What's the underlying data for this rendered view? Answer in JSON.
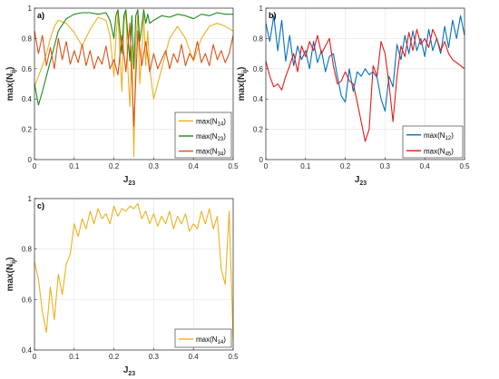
{
  "chart_data": [
    {
      "type": "line",
      "panel_label": "a)",
      "xlabel": "J",
      "xlabel_sub": "23",
      "ylabel": "max(N",
      "ylabel_sub": "ij",
      "ylabel_close": ")",
      "xlim": [
        0,
        0.5
      ],
      "ylim": [
        0,
        1
      ],
      "xticks": [
        "0",
        "0.1",
        "0.2",
        "0.3",
        "0.4",
        "0.5"
      ],
      "yticks": [
        "0",
        "0.2",
        "0.4",
        "0.6",
        "0.8",
        "1"
      ],
      "grid": true,
      "legend_position": "bottom-right",
      "series": [
        {
          "name": "max(N14)",
          "legend_main": "max(N",
          "legend_sub": "14",
          "legend_close": ")",
          "color": "#EDB120",
          "x": [
            0,
            0.01,
            0.02,
            0.03,
            0.04,
            0.05,
            0.06,
            0.08,
            0.1,
            0.12,
            0.14,
            0.16,
            0.18,
            0.19,
            0.2,
            0.205,
            0.21,
            0.215,
            0.22,
            0.225,
            0.23,
            0.235,
            0.24,
            0.245,
            0.25,
            0.255,
            0.26,
            0.265,
            0.27,
            0.275,
            0.28,
            0.285,
            0.29,
            0.3,
            0.32,
            0.34,
            0.36,
            0.38,
            0.4,
            0.42,
            0.44,
            0.46,
            0.48,
            0.5
          ],
          "y": [
            0.48,
            0.55,
            0.62,
            0.7,
            0.8,
            0.88,
            0.92,
            0.9,
            0.84,
            0.75,
            0.86,
            0.94,
            0.92,
            0.82,
            0.55,
            0.8,
            0.97,
            0.7,
            0.45,
            0.9,
            0.98,
            0.6,
            0.35,
            0.75,
            0.02,
            0.75,
            0.97,
            0.5,
            0.7,
            0.95,
            0.62,
            0.85,
            0.6,
            0.4,
            0.6,
            0.8,
            0.88,
            0.8,
            0.65,
            0.8,
            0.88,
            0.9,
            0.88,
            0.85
          ]
        },
        {
          "name": "max(N23)",
          "legend_main": "max(N",
          "legend_sub": "23",
          "legend_close": ")",
          "color": "#1A8A1A",
          "x": [
            0,
            0.01,
            0.02,
            0.03,
            0.04,
            0.05,
            0.06,
            0.08,
            0.1,
            0.12,
            0.14,
            0.16,
            0.18,
            0.19,
            0.2,
            0.205,
            0.21,
            0.215,
            0.22,
            0.225,
            0.23,
            0.235,
            0.24,
            0.245,
            0.25,
            0.255,
            0.26,
            0.265,
            0.27,
            0.275,
            0.28,
            0.285,
            0.29,
            0.3,
            0.32,
            0.34,
            0.36,
            0.38,
            0.4,
            0.42,
            0.44,
            0.46,
            0.48,
            0.5
          ],
          "y": [
            0.5,
            0.36,
            0.45,
            0.55,
            0.65,
            0.75,
            0.85,
            0.93,
            0.96,
            0.97,
            0.97,
            0.96,
            0.97,
            0.92,
            0.8,
            0.95,
            0.99,
            0.85,
            0.7,
            0.95,
            0.99,
            0.82,
            0.65,
            0.95,
            0.6,
            0.95,
            0.99,
            0.78,
            0.88,
            0.99,
            0.9,
            0.96,
            0.9,
            0.92,
            0.95,
            0.94,
            0.96,
            0.95,
            0.93,
            0.96,
            0.95,
            0.97,
            0.96,
            0.96
          ]
        },
        {
          "name": "max(N34)",
          "legend_main": "max(N",
          "legend_sub": "34",
          "legend_close": ")",
          "color": "#D95319",
          "x": [
            0,
            0.01,
            0.02,
            0.03,
            0.04,
            0.05,
            0.06,
            0.07,
            0.08,
            0.09,
            0.1,
            0.11,
            0.12,
            0.13,
            0.14,
            0.15,
            0.16,
            0.17,
            0.18,
            0.19,
            0.2,
            0.21,
            0.22,
            0.23,
            0.24,
            0.25,
            0.26,
            0.27,
            0.28,
            0.29,
            0.3,
            0.31,
            0.32,
            0.33,
            0.34,
            0.35,
            0.36,
            0.37,
            0.38,
            0.39,
            0.4,
            0.41,
            0.42,
            0.43,
            0.44,
            0.45,
            0.46,
            0.47,
            0.48,
            0.49,
            0.5
          ],
          "y": [
            0.85,
            0.7,
            0.82,
            0.62,
            0.74,
            0.6,
            0.8,
            0.66,
            0.78,
            0.63,
            0.72,
            0.64,
            0.76,
            0.62,
            0.72,
            0.6,
            0.68,
            0.63,
            0.75,
            0.6,
            0.66,
            0.56,
            0.82,
            0.58,
            0.9,
            0.22,
            0.85,
            0.62,
            0.78,
            0.58,
            0.7,
            0.6,
            0.66,
            0.72,
            0.6,
            0.7,
            0.64,
            0.76,
            0.62,
            0.7,
            0.66,
            0.78,
            0.64,
            0.7,
            0.62,
            0.76,
            0.66,
            0.72,
            0.64,
            0.7,
            0.82
          ]
        }
      ]
    },
    {
      "type": "line",
      "panel_label": "b)",
      "xlabel": "J",
      "xlabel_sub": "23",
      "ylabel": "max(N",
      "ylabel_sub": "ij",
      "ylabel_close": ")",
      "xlim": [
        0,
        0.5
      ],
      "ylim": [
        0,
        1
      ],
      "xticks": [
        "0",
        "0.1",
        "0.2",
        "0.3",
        "0.4",
        "0.5"
      ],
      "yticks": [
        "0",
        "0.2",
        "0.4",
        "0.6",
        "0.8",
        "1"
      ],
      "grid": true,
      "legend_position": "bottom-right",
      "series": [
        {
          "name": "max(N12)",
          "legend_main": "max(N",
          "legend_sub": "12",
          "legend_close": ")",
          "color": "#0072BD",
          "x": [
            0,
            0.01,
            0.02,
            0.03,
            0.04,
            0.05,
            0.06,
            0.07,
            0.08,
            0.09,
            0.1,
            0.11,
            0.12,
            0.13,
            0.14,
            0.15,
            0.16,
            0.17,
            0.18,
            0.19,
            0.2,
            0.21,
            0.22,
            0.23,
            0.24,
            0.25,
            0.26,
            0.27,
            0.28,
            0.29,
            0.3,
            0.31,
            0.32,
            0.33,
            0.34,
            0.35,
            0.36,
            0.37,
            0.38,
            0.39,
            0.4,
            0.41,
            0.42,
            0.43,
            0.44,
            0.45,
            0.46,
            0.47,
            0.48,
            0.49,
            0.5
          ],
          "y": [
            0.9,
            0.78,
            0.95,
            0.72,
            0.92,
            0.65,
            0.82,
            0.62,
            0.75,
            0.66,
            0.72,
            0.6,
            0.78,
            0.64,
            0.72,
            0.58,
            0.68,
            0.7,
            0.55,
            0.42,
            0.38,
            0.6,
            0.45,
            0.58,
            0.55,
            0.6,
            0.56,
            0.58,
            0.54,
            0.4,
            0.32,
            0.55,
            0.48,
            0.76,
            0.66,
            0.82,
            0.7,
            0.85,
            0.72,
            0.8,
            0.68,
            0.86,
            0.72,
            0.8,
            0.7,
            0.88,
            0.74,
            0.92,
            0.8,
            0.95,
            0.82
          ]
        },
        {
          "name": "max(N45)",
          "legend_main": "max(N",
          "legend_sub": "45",
          "legend_close": ")",
          "color": "#E41A1C",
          "x": [
            0,
            0.01,
            0.02,
            0.03,
            0.04,
            0.05,
            0.06,
            0.07,
            0.08,
            0.09,
            0.1,
            0.11,
            0.12,
            0.13,
            0.14,
            0.15,
            0.16,
            0.17,
            0.18,
            0.19,
            0.2,
            0.21,
            0.22,
            0.23,
            0.24,
            0.25,
            0.26,
            0.27,
            0.28,
            0.29,
            0.3,
            0.31,
            0.32,
            0.33,
            0.34,
            0.35,
            0.36,
            0.37,
            0.38,
            0.39,
            0.4,
            0.41,
            0.42,
            0.43,
            0.44,
            0.45,
            0.46,
            0.47,
            0.48,
            0.49,
            0.5
          ],
          "y": [
            0.65,
            0.55,
            0.48,
            0.5,
            0.46,
            0.55,
            0.62,
            0.7,
            0.58,
            0.75,
            0.68,
            0.78,
            0.72,
            0.82,
            0.7,
            0.75,
            0.8,
            0.62,
            0.5,
            0.52,
            0.58,
            0.52,
            0.5,
            0.38,
            0.25,
            0.12,
            0.2,
            0.62,
            0.55,
            0.78,
            0.7,
            0.5,
            0.25,
            0.55,
            0.75,
            0.68,
            0.84,
            0.72,
            0.86,
            0.76,
            0.8,
            0.74,
            0.86,
            0.8,
            0.72,
            0.78,
            0.7,
            0.66,
            0.64,
            0.62,
            0.6
          ]
        }
      ]
    },
    {
      "type": "line",
      "panel_label": "c)",
      "xlabel": "J",
      "xlabel_sub": "23",
      "ylabel": "max(N",
      "ylabel_sub": "ij",
      "ylabel_close": ")",
      "xlim": [
        0,
        0.5
      ],
      "ylim": [
        0.4,
        1
      ],
      "xticks": [
        "0",
        "0.1",
        "0.2",
        "0.3",
        "0.4",
        "0.5"
      ],
      "yticks": [
        "0.4",
        "0.6",
        "0.8",
        "1"
      ],
      "grid": true,
      "legend_position": "bottom-right",
      "series": [
        {
          "name": "max(N14)",
          "legend_main": "max(N",
          "legend_sub": "14",
          "legend_close": ")",
          "color": "#EDB120",
          "x": [
            0,
            0.01,
            0.02,
            0.03,
            0.04,
            0.05,
            0.06,
            0.07,
            0.08,
            0.09,
            0.1,
            0.11,
            0.12,
            0.13,
            0.14,
            0.15,
            0.16,
            0.17,
            0.18,
            0.19,
            0.2,
            0.21,
            0.22,
            0.23,
            0.24,
            0.25,
            0.26,
            0.27,
            0.28,
            0.29,
            0.3,
            0.31,
            0.32,
            0.33,
            0.34,
            0.35,
            0.36,
            0.37,
            0.38,
            0.39,
            0.4,
            0.41,
            0.42,
            0.43,
            0.44,
            0.45,
            0.46,
            0.47,
            0.48,
            0.49,
            0.5
          ],
          "y": [
            0.75,
            0.68,
            0.55,
            0.47,
            0.65,
            0.52,
            0.7,
            0.62,
            0.74,
            0.78,
            0.9,
            0.85,
            0.92,
            0.88,
            0.95,
            0.9,
            0.96,
            0.92,
            0.94,
            0.9,
            0.97,
            0.93,
            0.96,
            0.95,
            0.97,
            0.96,
            0.98,
            0.92,
            0.95,
            0.9,
            0.94,
            0.89,
            0.93,
            0.9,
            0.95,
            0.88,
            0.93,
            0.9,
            0.94,
            0.87,
            0.9,
            0.88,
            0.95,
            0.9,
            0.96,
            0.88,
            0.93,
            0.72,
            0.66,
            0.95,
            0.44
          ]
        }
      ]
    }
  ]
}
